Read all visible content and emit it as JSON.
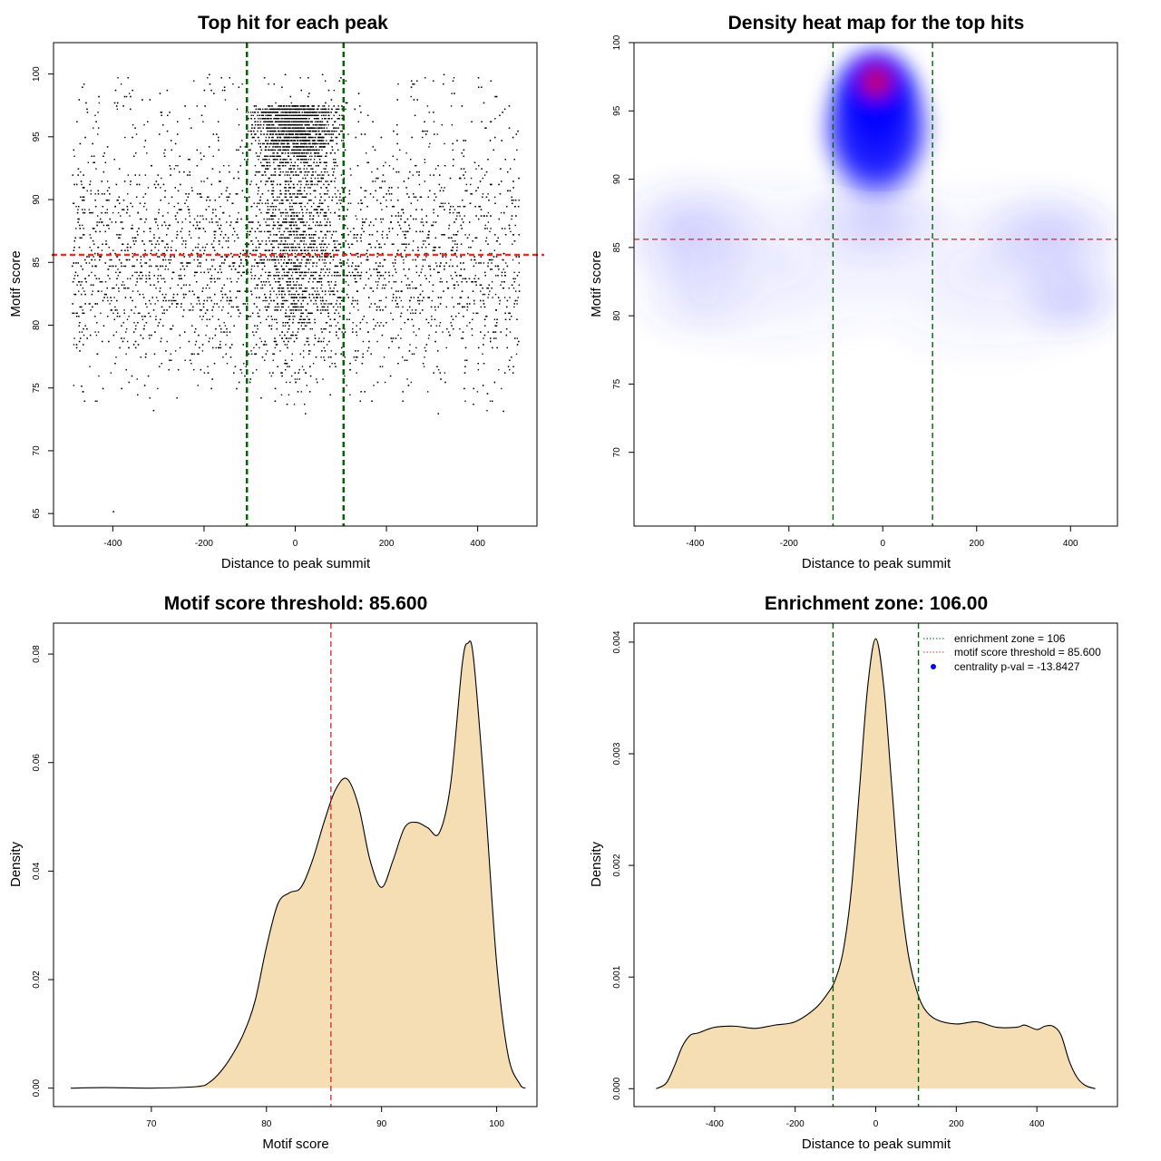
{
  "chart_data": [
    {
      "type": "scatter",
      "title": "Top hit for each peak",
      "xlabel": "Distance to peak summit",
      "ylabel": "Motif score",
      "xlim": [
        -530,
        530
      ],
      "ylim": [
        64,
        102.5
      ],
      "xticks": [
        -400,
        -200,
        0,
        200,
        400
      ],
      "yticks": [
        65,
        70,
        75,
        80,
        85,
        90,
        95,
        100
      ],
      "grid": false,
      "point_color": "#000000",
      "distribution": {
        "x_range": [
          -490,
          490
        ],
        "central_zone": [
          -106,
          106
        ],
        "background_y_mean": 84.5,
        "background_y_sd": 4.5,
        "central_y_mode": 97.5,
        "y_range": [
          73,
          100
        ]
      },
      "isolated_points": [
        {
          "x": -400,
          "y": 65.2
        },
        {
          "x": 455,
          "y": 73.2
        },
        {
          "x": -470,
          "y": 75.2
        },
        {
          "x": 420,
          "y": 74.6
        },
        {
          "x": -130,
          "y": 75.0
        }
      ],
      "vlines": [
        {
          "x": -106,
          "color": "#006400",
          "style": "dashed"
        },
        {
          "x": 106,
          "color": "#006400",
          "style": "dashed"
        }
      ],
      "hlines": [
        {
          "y": 85.6,
          "color": "#e03030",
          "style": "dashed"
        }
      ]
    },
    {
      "type": "heatmap",
      "title": "Density heat map for the top hits",
      "xlabel": "Distance to peak summit",
      "ylabel": "Motif score",
      "xlim": [
        -530,
        500
      ],
      "ylim": [
        64.6,
        100
      ],
      "xticks": [
        -400,
        -200,
        0,
        200,
        400
      ],
      "yticks": [
        70,
        75,
        80,
        85,
        90,
        95,
        100
      ],
      "colors": [
        "#ffffff",
        "#0000ff",
        "#ff0000"
      ],
      "peak": {
        "x": 0,
        "y": 97.5
      },
      "vlines": [
        {
          "x": -106,
          "color": "#006400",
          "style": "dashed"
        },
        {
          "x": 106,
          "color": "#006400",
          "style": "dashed"
        }
      ],
      "hlines": [
        {
          "y": 85.6,
          "color": "#e03030",
          "style": "dashed"
        }
      ]
    },
    {
      "type": "area",
      "title": "Motif score threshold: 85.600",
      "xlabel": "Motif score",
      "ylabel": "Density",
      "xlim": [
        61.5,
        103.5
      ],
      "ylim": [
        -0.0034,
        0.0857
      ],
      "xticks": [
        70,
        80,
        90,
        100
      ],
      "yticks": [
        0.0,
        0.02,
        0.04,
        0.06,
        0.08
      ],
      "ytick_labels": [
        "0.00",
        "0.02",
        "0.04",
        "0.06",
        "0.08"
      ],
      "fill": "#f5deb3",
      "x": [
        63,
        66,
        70,
        74,
        75,
        76,
        77,
        78,
        79,
        80,
        81,
        82,
        83,
        84,
        85,
        86,
        87,
        88,
        89,
        90,
        91,
        92,
        93,
        94,
        95,
        96,
        97,
        97.5,
        98,
        99,
        100,
        101,
        102,
        102.5
      ],
      "y": [
        0.0,
        0.0001,
        0.0,
        0.0003,
        0.001,
        0.003,
        0.006,
        0.01,
        0.016,
        0.026,
        0.034,
        0.036,
        0.037,
        0.042,
        0.049,
        0.055,
        0.057,
        0.052,
        0.042,
        0.037,
        0.042,
        0.048,
        0.049,
        0.048,
        0.047,
        0.056,
        0.078,
        0.082,
        0.079,
        0.053,
        0.023,
        0.006,
        0.0008,
        0.0
      ],
      "vlines": [
        {
          "x": 85.6,
          "color": "#e03030",
          "style": "dashed"
        }
      ]
    },
    {
      "type": "area",
      "title": "Enrichment zone: 106.00",
      "xlabel": "Distance to peak summit",
      "ylabel": "Density",
      "xlim": [
        -600,
        600
      ],
      "ylim": [
        -0.00016,
        0.00417
      ],
      "xticks": [
        -400,
        -200,
        0,
        200,
        400
      ],
      "yticks": [
        0.0,
        0.001,
        0.002,
        0.003,
        0.004
      ],
      "ytick_labels": [
        "0.000",
        "0.001",
        "0.002",
        "0.003",
        "0.004"
      ],
      "fill": "#f5deb3",
      "x": [
        -545,
        -520,
        -500,
        -480,
        -460,
        -440,
        -400,
        -350,
        -300,
        -250,
        -200,
        -150,
        -120,
        -100,
        -80,
        -60,
        -40,
        -20,
        0,
        20,
        40,
        60,
        80,
        100,
        120,
        150,
        200,
        250,
        300,
        350,
        370,
        400,
        420,
        440,
        460,
        480,
        500,
        520,
        545
      ],
      "y": [
        0.0,
        5e-05,
        0.0002,
        0.00038,
        0.00048,
        0.0005,
        0.00055,
        0.00056,
        0.00054,
        0.00057,
        0.0006,
        0.00072,
        0.00085,
        0.00098,
        0.00125,
        0.0018,
        0.0027,
        0.0036,
        0.00403,
        0.0036,
        0.0027,
        0.0018,
        0.00122,
        0.0009,
        0.00072,
        0.00062,
        0.00058,
        0.0006,
        0.00055,
        0.00055,
        0.00057,
        0.00053,
        0.00056,
        0.00056,
        0.00048,
        0.00025,
        0.0001,
        3e-05,
        0.0
      ],
      "vlines": [
        {
          "x": -106,
          "color": "#006400",
          "style": "dashed"
        },
        {
          "x": 106,
          "color": "#006400",
          "style": "dashed"
        }
      ],
      "legend": {
        "position": "top-right",
        "entries": [
          {
            "label": "enrichment zone = 106",
            "color": "#006400",
            "marker": "dotted-line"
          },
          {
            "label": "motif score threshold = 85.600",
            "color": "#e03030",
            "marker": "dotted-line"
          },
          {
            "label": "centrality p-val = -13.8427",
            "color": "#0000ff",
            "marker": "dot"
          }
        ]
      }
    }
  ]
}
